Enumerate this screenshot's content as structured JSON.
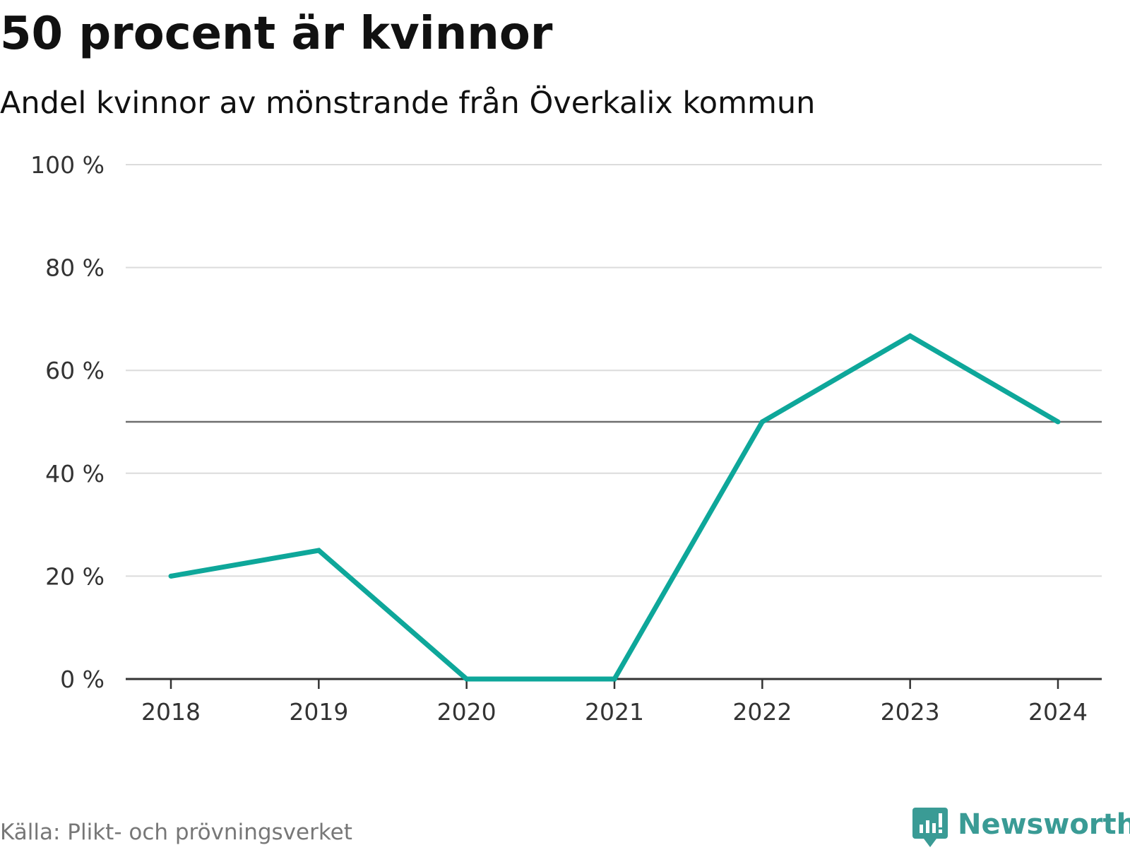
{
  "header": {
    "title": "50 procent är kvinnor",
    "subtitle": "Andel kvinnor av mönstrande från Överkalix kommun"
  },
  "footer": {
    "source": "Källa: Plikt- och prövningsverket",
    "logo_text": "Newsworthy",
    "logo_icon": "newsworthy-chart-bubble-icon"
  },
  "colors": {
    "line": "#0ea79a",
    "grid": "#dcdcdc",
    "reference_line": "#6e6e6e",
    "axis": "#333333",
    "brand": "#3a9b95"
  },
  "chart_data": {
    "type": "line",
    "title": "50 procent är kvinnor",
    "subtitle": "Andel kvinnor av mönstrande från Överkalix kommun",
    "categories": [
      "2018",
      "2019",
      "2020",
      "2021",
      "2022",
      "2023",
      "2024"
    ],
    "series": [
      {
        "values": [
          20,
          25,
          0,
          0,
          50,
          66.7,
          50
        ]
      }
    ],
    "ylim": [
      0,
      100
    ],
    "y_ticks": [
      0,
      20,
      40,
      60,
      80,
      100
    ],
    "y_tick_labels": [
      "0 %",
      "20 %",
      "40 %",
      "60 %",
      "80 %",
      "100 %"
    ],
    "reference_line": 50,
    "grid": true,
    "xlabel": "",
    "ylabel": ""
  }
}
